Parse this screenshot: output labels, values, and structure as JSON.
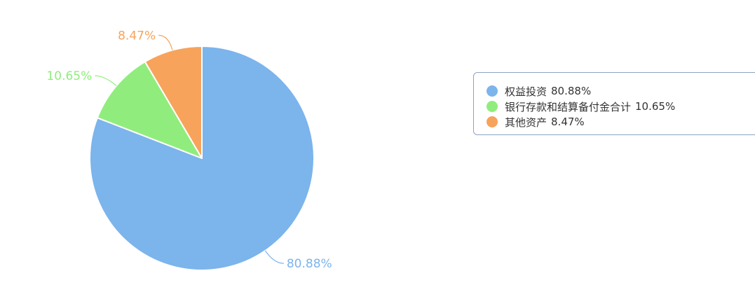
{
  "chart_data": {
    "type": "pie",
    "slices": [
      {
        "name": "权益投资",
        "value": 80.88,
        "label": "80.88%",
        "color": "#7cb4ec"
      },
      {
        "name": "银行存款和结算备付金合计",
        "value": 10.65,
        "label": "10.65%",
        "color": "#90ed7d"
      },
      {
        "name": "其他资产",
        "value": 8.47,
        "label": "8.47%",
        "color": "#f7a35c"
      }
    ],
    "title": "",
    "legend_position": "right"
  }
}
